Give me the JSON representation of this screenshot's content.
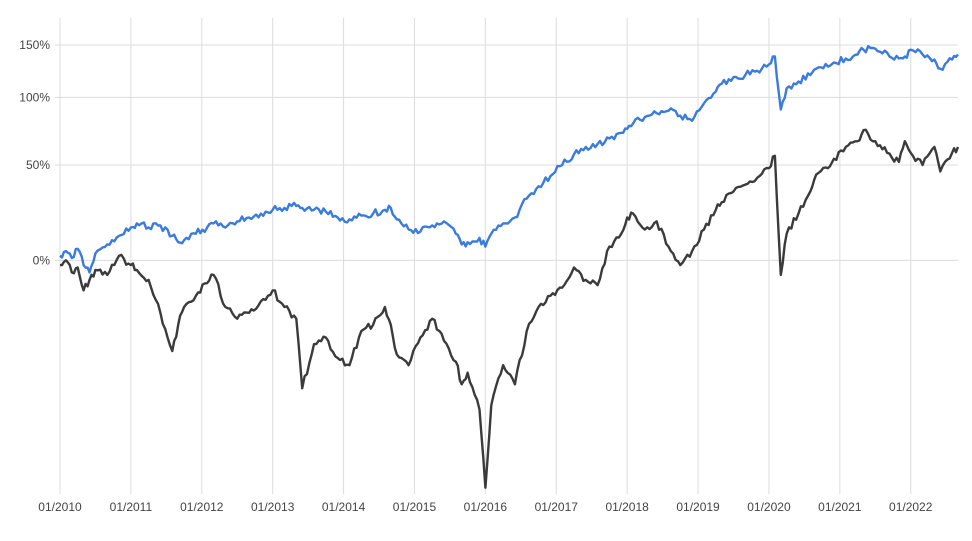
{
  "chart_data": {
    "type": "line",
    "title": "",
    "xlabel": "",
    "ylabel": "",
    "y_scale": "log",
    "grid": true,
    "legend": "none",
    "x_ticks": [
      "01/2010",
      "01/2011",
      "01/2012",
      "01/2013",
      "01/2014",
      "01/2015",
      "01/2016",
      "01/2017",
      "01/2018",
      "01/2019",
      "01/2020",
      "01/2021",
      "01/2022"
    ],
    "y_ticks": [
      "0%",
      "50%",
      "100%",
      "150%"
    ],
    "y_tick_values": [
      0,
      50,
      100,
      150
    ],
    "xlim": [
      "2010-01",
      "2022-09"
    ],
    "ylim": [
      -63,
      178
    ],
    "series": [
      {
        "color": "#3a7bdc",
        "x": [
          "2010-01",
          "2010-02",
          "2010-03",
          "2010-04",
          "2010-05",
          "2010-06",
          "2010-07",
          "2010-09",
          "2010-11",
          "2011-01",
          "2011-02",
          "2011-04",
          "2011-06",
          "2011-08",
          "2011-09",
          "2011-10",
          "2011-12",
          "2012-03",
          "2012-05",
          "2012-07",
          "2012-09",
          "2012-11",
          "2013-01",
          "2013-03",
          "2013-05",
          "2013-06",
          "2013-08",
          "2013-10",
          "2013-12",
          "2014-02",
          "2014-04",
          "2014-06",
          "2014-08",
          "2014-09",
          "2014-10",
          "2014-12",
          "2015-02",
          "2015-04",
          "2015-06",
          "2015-08",
          "2015-09",
          "2015-10",
          "2015-12",
          "2016-01",
          "2016-02",
          "2016-04",
          "2016-06",
          "2016-08",
          "2016-10",
          "2016-12",
          "2017-02",
          "2017-04",
          "2017-06",
          "2017-08",
          "2017-10",
          "2017-12",
          "2018-01",
          "2018-02",
          "2018-04",
          "2018-06",
          "2018-08",
          "2018-10",
          "2018-12",
          "2019-02",
          "2019-04",
          "2019-05",
          "2019-07",
          "2019-09",
          "2019-11",
          "2020-01",
          "2020-02",
          "2020-03",
          "2020-04",
          "2020-06",
          "2020-08",
          "2020-09",
          "2020-11",
          "2020-12",
          "2021-02",
          "2021-04",
          "2021-05",
          "2021-07",
          "2021-09",
          "2021-11",
          "2021-12",
          "2022-01",
          "2022-03",
          "2022-05",
          "2022-06",
          "2022-08",
          "2022-09"
        ],
        "values": [
          2,
          4,
          1,
          5,
          -2,
          -5,
          3,
          7,
          11,
          15,
          17,
          15,
          16,
          11,
          8,
          9,
          12,
          17,
          15,
          18,
          20,
          22,
          24,
          25,
          26,
          25,
          24,
          23,
          20,
          19,
          21,
          22,
          24,
          25,
          19,
          14,
          13,
          16,
          18,
          12,
          7,
          8,
          10,
          6,
          12,
          17,
          20,
          30,
          37,
          43,
          50,
          57,
          62,
          64,
          68,
          72,
          75,
          79,
          84,
          87,
          89,
          85,
          81,
          95,
          105,
          112,
          118,
          120,
          124,
          130,
          138,
          90,
          108,
          114,
          120,
          126,
          128,
          132,
          136,
          140,
          145,
          146,
          142,
          136,
          138,
          145,
          140,
          135,
          126,
          135,
          140
        ]
      },
      {
        "color": "#3b3b3b",
        "x": [
          "2010-01",
          "2010-02",
          "2010-03",
          "2010-04",
          "2010-05",
          "2010-06",
          "2010-07",
          "2010-09",
          "2010-11",
          "2011-01",
          "2011-02",
          "2011-04",
          "2011-06",
          "2011-08",
          "2011-09",
          "2011-10",
          "2011-12",
          "2012-03",
          "2012-05",
          "2012-07",
          "2012-09",
          "2012-11",
          "2013-01",
          "2013-03",
          "2013-05",
          "2013-06",
          "2013-08",
          "2013-10",
          "2013-12",
          "2014-02",
          "2014-04",
          "2014-06",
          "2014-08",
          "2014-09",
          "2014-10",
          "2014-12",
          "2015-02",
          "2015-04",
          "2015-06",
          "2015-08",
          "2015-09",
          "2015-10",
          "2015-12",
          "2016-01",
          "2016-02",
          "2016-04",
          "2016-06",
          "2016-08",
          "2016-10",
          "2016-12",
          "2017-02",
          "2017-04",
          "2017-06",
          "2017-08",
          "2017-10",
          "2017-12",
          "2018-01",
          "2018-02",
          "2018-04",
          "2018-06",
          "2018-08",
          "2018-10",
          "2018-12",
          "2019-02",
          "2019-04",
          "2019-05",
          "2019-07",
          "2019-09",
          "2019-11",
          "2020-01",
          "2020-02",
          "2020-03",
          "2020-04",
          "2020-06",
          "2020-08",
          "2020-09",
          "2020-11",
          "2020-12",
          "2021-02",
          "2021-04",
          "2021-05",
          "2021-07",
          "2021-09",
          "2021-11",
          "2021-12",
          "2022-01",
          "2022-03",
          "2022-05",
          "2022-06",
          "2022-08",
          "2022-09"
        ],
        "values": [
          -2,
          0,
          -5,
          -3,
          -12,
          -8,
          -4,
          -6,
          2,
          -2,
          -4,
          -8,
          -20,
          -32,
          -24,
          -18,
          -14,
          -6,
          -18,
          -22,
          -20,
          -16,
          -12,
          -18,
          -22,
          -42,
          -30,
          -28,
          -34,
          -36,
          -26,
          -24,
          -18,
          -24,
          -33,
          -36,
          -28,
          -22,
          -29,
          -35,
          -41,
          -38,
          -47,
          -62,
          -46,
          -36,
          -41,
          -26,
          -18,
          -14,
          -11,
          -3,
          -8,
          -10,
          6,
          12,
          20,
          22,
          14,
          18,
          6,
          -2,
          4,
          14,
          24,
          28,
          34,
          38,
          42,
          48,
          56,
          -6,
          12,
          22,
          34,
          44,
          48,
          54,
          62,
          66,
          74,
          66,
          58,
          52,
          66,
          58,
          50,
          62,
          46,
          58,
          62
        ]
      }
    ]
  }
}
